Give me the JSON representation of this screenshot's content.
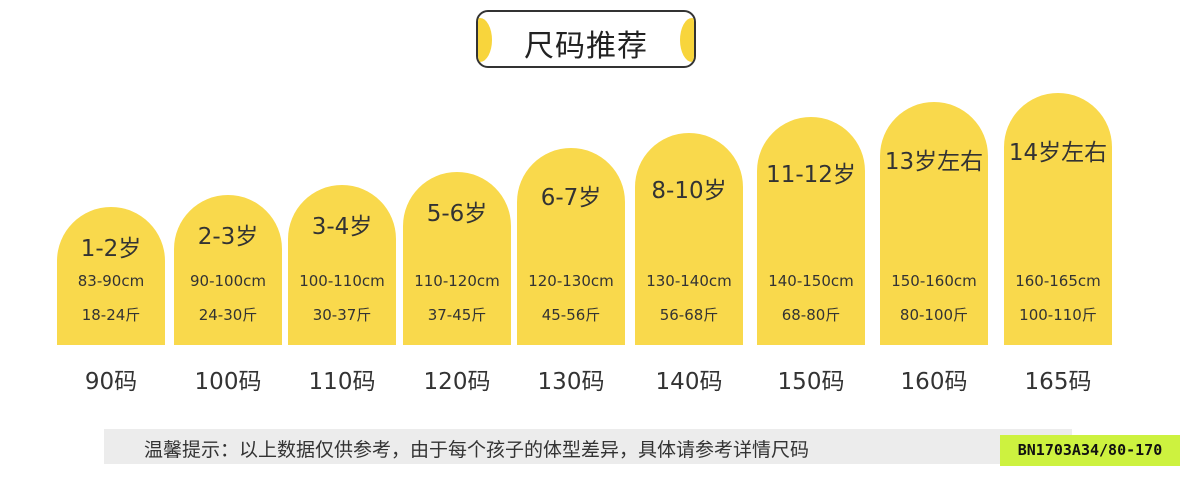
{
  "title": "尺码推荐",
  "accent_color": "#f9d94c",
  "sizes": [
    {
      "age": "1-2岁",
      "height": "83-90cm",
      "weight": "18-24斤",
      "size": "90码"
    },
    {
      "age": "2-3岁",
      "height": "90-100cm",
      "weight": "24-30斤",
      "size": "100码"
    },
    {
      "age": "3-4岁",
      "height": "100-110cm",
      "weight": "30-37斤",
      "size": "110码"
    },
    {
      "age": "5-6岁",
      "height": "110-120cm",
      "weight": "37-45斤",
      "size": "120码"
    },
    {
      "age": "6-7岁",
      "height": "120-130cm",
      "weight": "45-56斤",
      "size": "130码"
    },
    {
      "age": "8-10岁",
      "height": "130-140cm",
      "weight": "56-68斤",
      "size": "140码"
    },
    {
      "age": "11-12岁",
      "height": "140-150cm",
      "weight": "68-80斤",
      "size": "150码"
    },
    {
      "age": "13岁左右",
      "height": "150-160cm",
      "weight": "80-100斤",
      "size": "160码"
    },
    {
      "age": "14岁左右",
      "height": "160-165cm",
      "weight": "100-110斤",
      "size": "165码"
    }
  ],
  "tip": "温馨提示：以上数据仅供参考，由于每个孩子的体型差异，具体请参考详情尺码",
  "product_code": "BN1703A34/80-170"
}
